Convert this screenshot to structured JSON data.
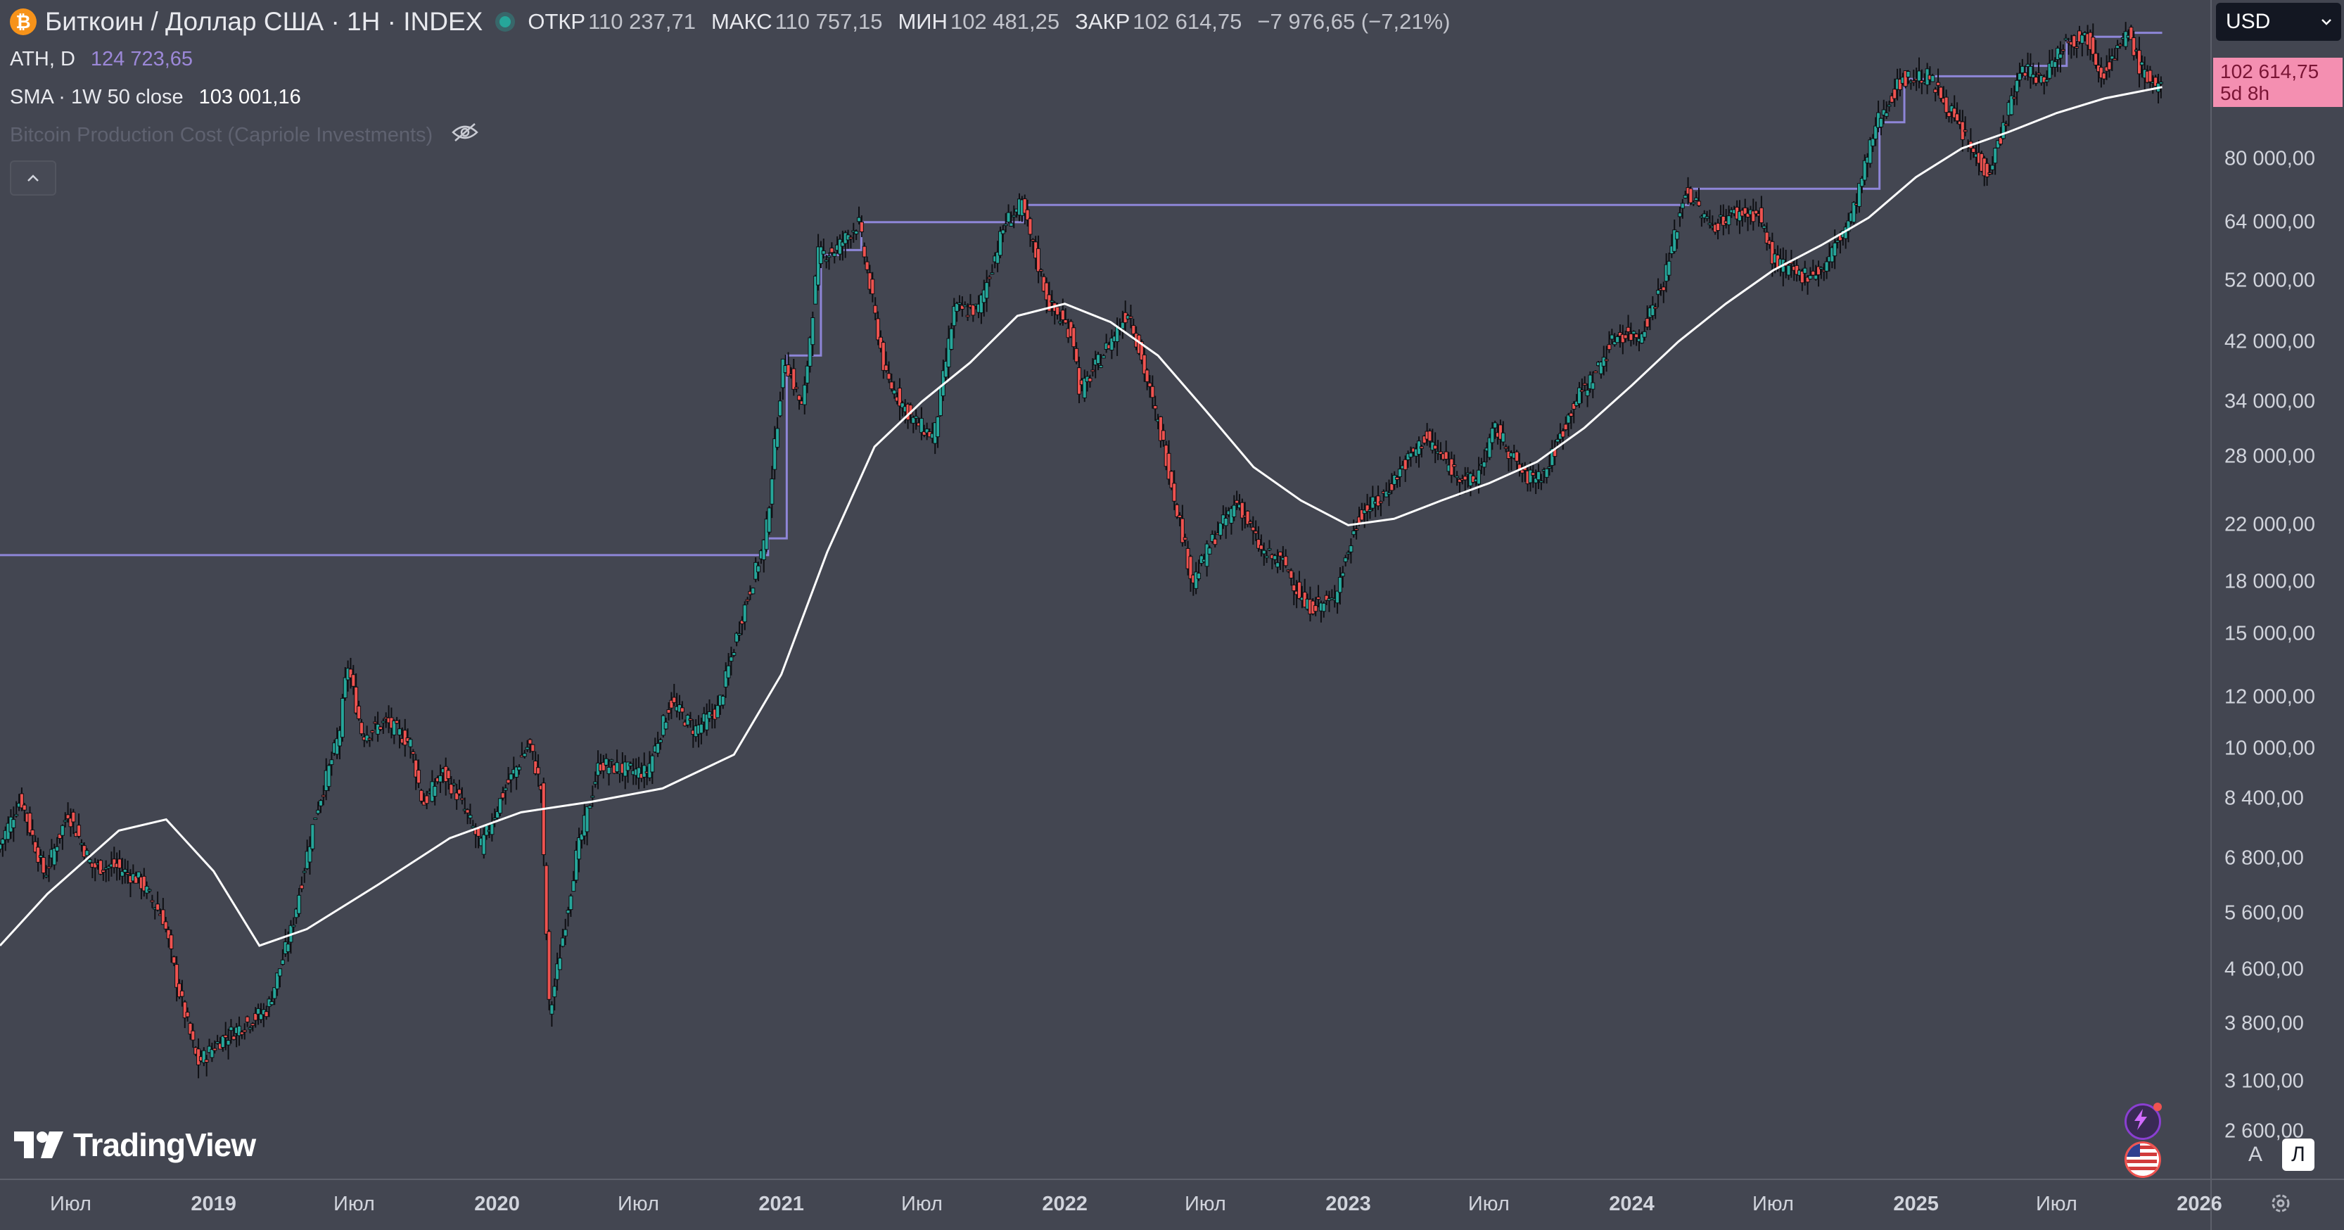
{
  "header": {
    "logo_glyph": "₿",
    "symbol_title": "Биткоин / Доллар США · 1H · INDEX",
    "ohlc": {
      "open_label": "ОТКР",
      "open": "110 237,71",
      "high_label": "МАКС",
      "high": "110 757,15",
      "low_label": "МИН",
      "low": "102 481,25",
      "close_label": "ЗАКР",
      "close": "102 614,75",
      "change": "−7 976,65 (−7,21%)"
    }
  },
  "indicators": [
    {
      "name": "ATH, D",
      "value": "124 723,65"
    },
    {
      "name": "SMA · 1W 50 close",
      "value": "103 001,16"
    },
    {
      "name": "Bitcoin Production Cost (Capriole Investments)",
      "value": ""
    }
  ],
  "price_axis": {
    "currency": "USD",
    "current_price": "102 614,75",
    "countdown": "5d 8h",
    "ticks": [
      "80 000,00",
      "64 000,00",
      "52 000,00",
      "42 000,00",
      "34 000,00",
      "28 000,00",
      "22 000,00",
      "18 000,00",
      "15 000,00",
      "12 000,00",
      "10 000,00",
      "8 400,00",
      "6 800,00",
      "5 600,00",
      "4 600,00",
      "3 800,00",
      "3 100,00",
      "2 600,00"
    ]
  },
  "time_axis": {
    "ticks": [
      {
        "label": "Июл",
        "year": false
      },
      {
        "label": "2019",
        "year": true
      },
      {
        "label": "Июл",
        "year": false
      },
      {
        "label": "2020",
        "year": true
      },
      {
        "label": "Июл",
        "year": false
      },
      {
        "label": "2021",
        "year": true
      },
      {
        "label": "Июл",
        "year": false
      },
      {
        "label": "2022",
        "year": true
      },
      {
        "label": "Июл",
        "year": false
      },
      {
        "label": "2023",
        "year": true
      },
      {
        "label": "Июл",
        "year": false
      },
      {
        "label": "2024",
        "year": true
      },
      {
        "label": "Июл",
        "year": false
      },
      {
        "label": "2025",
        "year": true
      },
      {
        "label": "Июл",
        "year": false
      },
      {
        "label": "2026",
        "year": true
      }
    ]
  },
  "branding": {
    "logo_text": "TradingView"
  },
  "scale_buttons": {
    "auto": "A",
    "log": "Л"
  },
  "colors": {
    "background": "#434651",
    "up_candle": "#26a69a",
    "down_candle": "#ef5350",
    "ath_line": "#8e86d8",
    "sma_line": "#ffffff",
    "price_badge": "#f48fb1"
  },
  "chart_data": {
    "type": "candlestick",
    "scale": "log",
    "ylim": [
      2200,
      140000
    ],
    "xlim": [
      "2018-04-01",
      "2026-01-15"
    ],
    "price_series": [
      [
        "2018-04-01",
        7000
      ],
      [
        "2018-05-01",
        8400
      ],
      [
        "2018-06-01",
        6400
      ],
      [
        "2018-07-01",
        8000
      ],
      [
        "2018-08-01",
        6600
      ],
      [
        "2018-09-01",
        6600
      ],
      [
        "2018-10-01",
        6300
      ],
      [
        "2018-11-01",
        5500
      ],
      [
        "2018-11-20",
        4300
      ],
      [
        "2018-12-15",
        3300
      ],
      [
        "2019-01-15",
        3600
      ],
      [
        "2019-02-15",
        3800
      ],
      [
        "2019-03-15",
        4000
      ],
      [
        "2019-04-15",
        5300
      ],
      [
        "2019-05-15",
        7900
      ],
      [
        "2019-06-15",
        10500
      ],
      [
        "2019-06-26",
        13500
      ],
      [
        "2019-07-15",
        10500
      ],
      [
        "2019-08-15",
        11000
      ],
      [
        "2019-09-15",
        10200
      ],
      [
        "2019-10-01",
        8200
      ],
      [
        "2019-10-26",
        9200
      ],
      [
        "2019-11-15",
        8500
      ],
      [
        "2019-12-15",
        7100
      ],
      [
        "2020-01-15",
        8700
      ],
      [
        "2020-02-15",
        10200
      ],
      [
        "2020-03-01",
        8700
      ],
      [
        "2020-03-12",
        3900
      ],
      [
        "2020-04-15",
        6800
      ],
      [
        "2020-05-15",
        9500
      ],
      [
        "2020-06-15",
        9300
      ],
      [
        "2020-07-15",
        9200
      ],
      [
        "2020-08-15",
        11800
      ],
      [
        "2020-09-15",
        10700
      ],
      [
        "2020-10-15",
        11500
      ],
      [
        "2020-11-15",
        16000
      ],
      [
        "2020-12-15",
        21000
      ],
      [
        "2021-01-08",
        40000
      ],
      [
        "2021-02-01",
        33000
      ],
      [
        "2021-02-21",
        57000
      ],
      [
        "2021-03-15",
        58000
      ],
      [
        "2021-04-14",
        64000
      ],
      [
        "2021-05-19",
        37000
      ],
      [
        "2021-06-22",
        32000
      ],
      [
        "2021-07-20",
        30000
      ],
      [
        "2021-08-15",
        47000
      ],
      [
        "2021-09-15",
        47000
      ],
      [
        "2021-10-20",
        64000
      ],
      [
        "2021-11-10",
        68000
      ],
      [
        "2021-12-15",
        48000
      ],
      [
        "2022-01-15",
        43000
      ],
      [
        "2022-01-24",
        35000
      ],
      [
        "2022-03-28",
        47000
      ],
      [
        "2022-05-12",
        29000
      ],
      [
        "2022-06-18",
        18000
      ],
      [
        "2022-07-15",
        21000
      ],
      [
        "2022-08-15",
        24000
      ],
      [
        "2022-09-15",
        20000
      ],
      [
        "2022-10-15",
        19200
      ],
      [
        "2022-11-10",
        16500
      ],
      [
        "2022-12-15",
        16800
      ],
      [
        "2023-01-20",
        23000
      ],
      [
        "2023-02-15",
        24000
      ],
      [
        "2023-03-15",
        27000
      ],
      [
        "2023-04-14",
        30000
      ],
      [
        "2023-05-15",
        27000
      ],
      [
        "2023-06-15",
        25500
      ],
      [
        "2023-07-13",
        31000
      ],
      [
        "2023-08-20",
        26000
      ],
      [
        "2023-09-15",
        26500
      ],
      [
        "2023-10-23",
        34000
      ],
      [
        "2023-11-15",
        37000
      ],
      [
        "2023-12-15",
        43000
      ],
      [
        "2024-01-15",
        43000
      ],
      [
        "2024-02-15",
        52000
      ],
      [
        "2024-03-14",
        72000
      ],
      [
        "2024-04-15",
        63000
      ],
      [
        "2024-05-15",
        66000
      ],
      [
        "2024-06-15",
        66000
      ],
      [
        "2024-07-05",
        56000
      ],
      [
        "2024-08-05",
        53000
      ],
      [
        "2024-09-06",
        54000
      ],
      [
        "2024-10-15",
        66000
      ],
      [
        "2024-11-15",
        91000
      ],
      [
        "2024-12-17",
        106000
      ],
      [
        "2025-01-20",
        107000
      ],
      [
        "2025-02-15",
        96000
      ],
      [
        "2025-03-15",
        83000
      ],
      [
        "2025-04-08",
        76000
      ],
      [
        "2025-05-22",
        111000
      ],
      [
        "2025-06-15",
        105000
      ],
      [
        "2025-07-14",
        121000
      ],
      [
        "2025-08-14",
        123000
      ],
      [
        "2025-09-01",
        108000
      ],
      [
        "2025-10-06",
        124700
      ],
      [
        "2025-10-20",
        110000
      ],
      [
        "2025-11-14",
        102600
      ]
    ],
    "sma_series": [
      [
        "2018-04-01",
        5000
      ],
      [
        "2018-06-01",
        6000
      ],
      [
        "2018-09-01",
        7500
      ],
      [
        "2018-11-01",
        7800
      ],
      [
        "2019-01-01",
        6500
      ],
      [
        "2019-03-01",
        5000
      ],
      [
        "2019-05-01",
        5300
      ],
      [
        "2019-08-01",
        6200
      ],
      [
        "2019-11-01",
        7300
      ],
      [
        "2020-02-01",
        8000
      ],
      [
        "2020-05-01",
        8300
      ],
      [
        "2020-08-01",
        8700
      ],
      [
        "2020-11-01",
        9800
      ],
      [
        "2021-01-01",
        13000
      ],
      [
        "2021-03-01",
        20000
      ],
      [
        "2021-05-01",
        29000
      ],
      [
        "2021-07-01",
        34000
      ],
      [
        "2021-09-01",
        39000
      ],
      [
        "2021-11-01",
        46000
      ],
      [
        "2022-01-01",
        48000
      ],
      [
        "2022-03-01",
        45000
      ],
      [
        "2022-05-01",
        40000
      ],
      [
        "2022-07-01",
        33000
      ],
      [
        "2022-09-01",
        27000
      ],
      [
        "2022-11-01",
        24000
      ],
      [
        "2023-01-01",
        22000
      ],
      [
        "2023-03-01",
        22500
      ],
      [
        "2023-05-01",
        24000
      ],
      [
        "2023-07-01",
        25500
      ],
      [
        "2023-09-01",
        27500
      ],
      [
        "2023-11-01",
        31000
      ],
      [
        "2024-01-01",
        36000
      ],
      [
        "2024-03-01",
        42000
      ],
      [
        "2024-05-01",
        48000
      ],
      [
        "2024-07-01",
        54000
      ],
      [
        "2024-09-01",
        59000
      ],
      [
        "2024-11-01",
        65000
      ],
      [
        "2025-01-01",
        75000
      ],
      [
        "2025-03-01",
        83000
      ],
      [
        "2025-05-01",
        88000
      ],
      [
        "2025-07-01",
        94000
      ],
      [
        "2025-09-01",
        99000
      ],
      [
        "2025-11-14",
        103000
      ]
    ]
  }
}
